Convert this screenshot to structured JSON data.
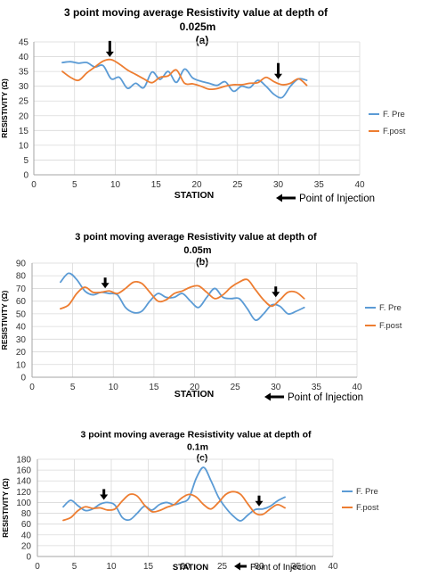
{
  "colors": {
    "pre": "#5b9bd5",
    "post": "#ed7d31",
    "grid": "#d9d9d9",
    "axis": "#a6a6a6"
  },
  "injection_label": "Point of Injection",
  "chart_data": [
    {
      "type": "line",
      "title_line1": "3 point moving average Resistivity value at depth of",
      "title_line2": "0.025m",
      "panel": "(a)",
      "xlabel": "STATION",
      "ylabel": "RESISTIVITY (Ω)",
      "xlim": [
        0,
        40
      ],
      "ylim": [
        0,
        45
      ],
      "xticks": [
        0,
        5,
        10,
        15,
        20,
        25,
        30,
        35,
        40
      ],
      "yticks": [
        0,
        5,
        10,
        15,
        20,
        25,
        30,
        35,
        40,
        45
      ],
      "arrows_at": [
        9,
        30
      ],
      "series": [
        {
          "name": "F. Pre",
          "key": "pre",
          "x": [
            3.5,
            4.5,
            5.5,
            6.5,
            7.5,
            8.5,
            9.5,
            10.5,
            11.5,
            12.5,
            13.5,
            14.5,
            15.5,
            16.5,
            17.5,
            18.5,
            19.5,
            20.5,
            21.5,
            22.5,
            23.5,
            24.5,
            25.5,
            26.5,
            27.5,
            28.5,
            29.5,
            30.5,
            31.5,
            32.5,
            33.5
          ],
          "y": [
            38,
            38.3,
            37.8,
            38,
            36.5,
            37,
            32.5,
            33,
            29.3,
            31,
            29.5,
            34.8,
            32.3,
            35,
            31.3,
            35.8,
            32.8,
            31.7,
            31,
            30.3,
            31.5,
            28.3,
            30,
            29.5,
            32,
            30,
            27.2,
            26.2,
            30,
            32.5,
            32
          ]
        },
        {
          "name": "F.post",
          "key": "post",
          "x": [
            3.5,
            4.5,
            5.5,
            6.5,
            7.5,
            8.5,
            9.5,
            10.5,
            11.5,
            12.5,
            13.5,
            14.5,
            15.5,
            16.5,
            17.5,
            18.5,
            19.5,
            20.5,
            21.5,
            22.5,
            23.5,
            24.5,
            25.5,
            26.5,
            27.5,
            28.5,
            29.5,
            30.5,
            31.5,
            32.5,
            33.5
          ],
          "y": [
            35,
            33,
            32,
            34.5,
            36.5,
            38.5,
            39,
            37.5,
            35.5,
            34,
            32.5,
            31.2,
            33,
            33.5,
            35.5,
            31,
            30.8,
            30,
            29,
            29.2,
            30,
            30.5,
            30.5,
            31,
            31.2,
            33,
            31.5,
            30.5,
            31,
            32.5,
            30.3
          ]
        }
      ]
    },
    {
      "type": "line",
      "title_line1": "3 point moving average Resistivity value at depth of",
      "title_line2": "0.05m",
      "panel": "(b)",
      "xlabel": "STATION",
      "ylabel": "RESISTIVITY (Ω)",
      "xlim": [
        0,
        40
      ],
      "ylim": [
        0,
        90
      ],
      "xticks": [
        0,
        5,
        10,
        15,
        20,
        25,
        30,
        35,
        40
      ],
      "yticks": [
        0,
        10,
        20,
        30,
        40,
        50,
        60,
        70,
        80,
        90
      ],
      "arrows_at": [
        9,
        30
      ],
      "series": [
        {
          "name": "F. Pre",
          "key": "pre",
          "x": [
            3.5,
            4.5,
            5.5,
            6.5,
            7.5,
            8.5,
            9.5,
            10.5,
            11.5,
            12.5,
            13.5,
            14.5,
            15.5,
            16.5,
            17.5,
            18.5,
            19.5,
            20.5,
            21.5,
            22.5,
            23.5,
            24.5,
            25.5,
            26.5,
            27.5,
            28.5,
            29.5,
            30.5,
            31.5,
            32.5,
            33.5
          ],
          "y": [
            75,
            82,
            77,
            68,
            65,
            67,
            66,
            65,
            55,
            51,
            52,
            60,
            66,
            63,
            63,
            66,
            60,
            55,
            63,
            70,
            63,
            62,
            62,
            54,
            45,
            50,
            57,
            56,
            50,
            52,
            55
          ]
        },
        {
          "name": "F.post",
          "key": "post",
          "x": [
            3.5,
            4.5,
            5.5,
            6.5,
            7.5,
            8.5,
            9.5,
            10.5,
            11.5,
            12.5,
            13.5,
            14.5,
            15.5,
            16.5,
            17.5,
            18.5,
            19.5,
            20.5,
            21.5,
            22.5,
            23.5,
            24.5,
            25.5,
            26.5,
            27.5,
            28.5,
            29.5,
            30.5,
            31.5,
            32.5,
            33.5
          ],
          "y": [
            54,
            57,
            66,
            71,
            67,
            67,
            68,
            66,
            70,
            75,
            74,
            67,
            60,
            61,
            66,
            68,
            71,
            72,
            67,
            62,
            65,
            71,
            75,
            77,
            69,
            61,
            56,
            61,
            67,
            67,
            62
          ]
        }
      ]
    },
    {
      "type": "line",
      "title_line1": "3 point moving average Resistivity value at depth of",
      "title_line2": "0.1m",
      "panel": "(c)",
      "xlabel": "STATION",
      "ylabel": "RESISTIVITY (Ω)",
      "xlim": [
        0,
        40
      ],
      "ylim": [
        0,
        180
      ],
      "xticks": [
        0,
        5,
        10,
        15,
        20,
        25,
        30,
        35,
        40
      ],
      "yticks": [
        0,
        20,
        40,
        60,
        80,
        100,
        120,
        140,
        160,
        180
      ],
      "arrows_at": [
        9,
        30
      ],
      "series": [
        {
          "name": "F. Pre",
          "key": "pre",
          "x": [
            3.5,
            4.5,
            5.5,
            6.5,
            7.5,
            8.5,
            9.5,
            10.5,
            11.5,
            12.5,
            13.5,
            14.5,
            15.5,
            16.5,
            17.5,
            18.5,
            19.5,
            20.5,
            21.5,
            22.5,
            23.5,
            24.5,
            25.5,
            26.5,
            27.5,
            28.5,
            29.5,
            30.5,
            31.5,
            32.5,
            33.5
          ],
          "y": [
            92,
            104,
            94,
            85,
            88,
            97,
            100,
            95,
            72,
            68,
            80,
            93,
            86,
            96,
            100,
            96,
            100,
            108,
            145,
            165,
            140,
            110,
            90,
            75,
            66,
            77,
            87,
            88,
            93,
            103,
            110
          ]
        },
        {
          "name": "F.post",
          "key": "post",
          "x": [
            3.5,
            4.5,
            5.5,
            6.5,
            7.5,
            8.5,
            9.5,
            10.5,
            11.5,
            12.5,
            13.5,
            14.5,
            15.5,
            16.5,
            17.5,
            18.5,
            19.5,
            20.5,
            21.5,
            22.5,
            23.5,
            24.5,
            25.5,
            26.5,
            27.5,
            28.5,
            29.5,
            30.5,
            31.5,
            32.5,
            33.5
          ],
          "y": [
            67,
            72,
            85,
            92,
            89,
            90,
            86,
            88,
            103,
            115,
            112,
            95,
            83,
            85,
            91,
            96,
            108,
            115,
            110,
            96,
            88,
            100,
            115,
            120,
            115,
            97,
            80,
            78,
            88,
            96,
            90
          ]
        }
      ]
    }
  ]
}
